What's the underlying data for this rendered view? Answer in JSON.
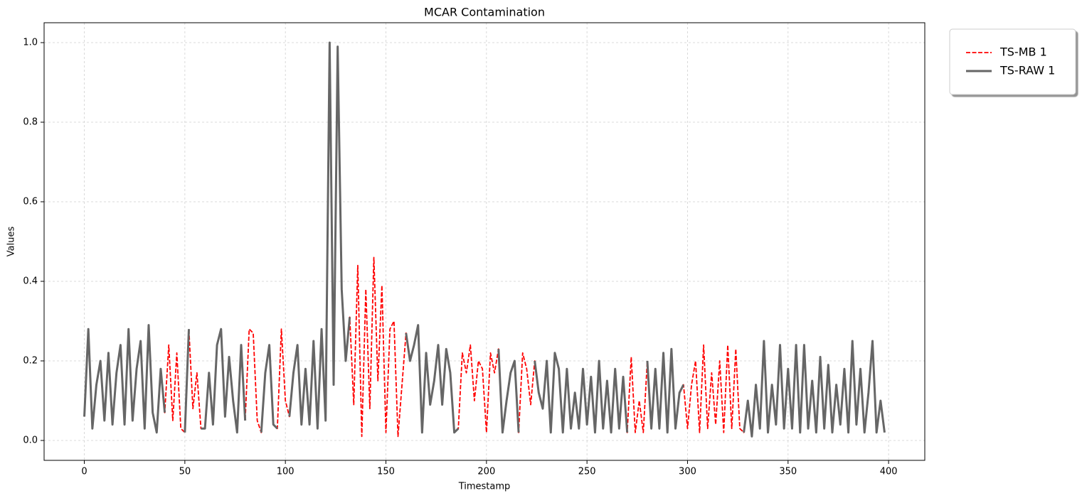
{
  "chart_data": {
    "type": "line",
    "title": "MCAR Contamination",
    "x_label": "Timestamp",
    "y_label": "Values",
    "x": [
      0,
      2,
      4,
      6,
      8,
      10,
      12,
      14,
      16,
      18,
      20,
      22,
      24,
      26,
      28,
      30,
      32,
      34,
      36,
      38,
      40,
      42,
      44,
      46,
      48,
      50,
      52,
      54,
      56,
      58,
      60,
      62,
      64,
      66,
      68,
      70,
      72,
      74,
      76,
      78,
      80,
      82,
      84,
      86,
      88,
      90,
      92,
      94,
      96,
      98,
      100,
      102,
      104,
      106,
      108,
      110,
      112,
      114,
      116,
      118,
      120,
      122,
      124,
      126,
      128,
      130,
      132,
      134,
      136,
      138,
      140,
      142,
      144,
      146,
      148,
      150,
      152,
      154,
      156,
      158,
      160,
      162,
      164,
      166,
      168,
      170,
      172,
      174,
      176,
      178,
      180,
      182,
      184,
      186,
      188,
      190,
      192,
      194,
      196,
      198,
      200,
      202,
      204,
      206,
      208,
      210,
      212,
      214,
      216,
      218,
      220,
      222,
      224,
      226,
      228,
      230,
      232,
      234,
      236,
      238,
      240,
      242,
      244,
      246,
      248,
      250,
      252,
      254,
      256,
      258,
      260,
      262,
      264,
      266,
      268,
      270,
      272,
      274,
      276,
      278,
      280,
      282,
      284,
      286,
      288,
      290,
      292,
      294,
      296,
      298,
      300,
      302,
      304,
      306,
      308,
      310,
      312,
      314,
      316,
      318,
      320,
      322,
      324,
      326,
      328,
      330,
      332,
      334,
      336,
      338,
      340,
      342,
      344,
      346,
      348,
      350,
      352,
      354,
      356,
      358,
      360,
      362,
      364,
      366,
      368,
      370,
      372,
      374,
      376,
      378,
      380,
      382,
      384,
      386,
      388,
      390,
      392,
      394,
      396,
      398
    ],
    "series": [
      {
        "name": "TS-MB 1",
        "color": "#ff0000",
        "dashed": true,
        "width": 1.8,
        "values": [
          0.06,
          0.28,
          0.03,
          0.14,
          0.2,
          0.05,
          0.22,
          0.04,
          0.17,
          0.24,
          0.04,
          0.28,
          0.05,
          0.18,
          0.25,
          0.03,
          0.29,
          0.07,
          0.02,
          0.18,
          0.07,
          0.24,
          0.05,
          0.22,
          0.03,
          0.02,
          0.28,
          0.08,
          0.17,
          0.03,
          0.03,
          0.17,
          0.04,
          0.24,
          0.28,
          0.06,
          0.21,
          0.1,
          0.02,
          0.24,
          0.05,
          0.28,
          0.27,
          0.05,
          0.02,
          0.17,
          0.24,
          0.04,
          0.03,
          0.28,
          0.1,
          0.06,
          0.17,
          0.24,
          0.04,
          0.18,
          0.04,
          0.25,
          0.03,
          0.28,
          0.05,
          1.0,
          0.14,
          0.99,
          0.38,
          0.2,
          0.31,
          0.09,
          0.44,
          0.01,
          0.38,
          0.08,
          0.46,
          0.15,
          0.39,
          0.02,
          0.28,
          0.3,
          0.01,
          0.14,
          0.27,
          0.2,
          0.24,
          0.29,
          0.02,
          0.22,
          0.09,
          0.15,
          0.24,
          0.09,
          0.23,
          0.17,
          0.02,
          0.03,
          0.22,
          0.17,
          0.24,
          0.1,
          0.2,
          0.18,
          0.02,
          0.22,
          0.17,
          0.23,
          0.02,
          0.1,
          0.17,
          0.2,
          0.02,
          0.22,
          0.18,
          0.09,
          0.2,
          0.12,
          0.08,
          0.2,
          0.02,
          0.22,
          0.18,
          0.02,
          0.18,
          0.03,
          0.12,
          0.03,
          0.18,
          0.04,
          0.16,
          0.02,
          0.2,
          0.03,
          0.15,
          0.02,
          0.18,
          0.03,
          0.16,
          0.02,
          0.21,
          0.02,
          0.1,
          0.02,
          0.2,
          0.03,
          0.18,
          0.03,
          0.22,
          0.02,
          0.23,
          0.03,
          0.12,
          0.14,
          0.03,
          0.14,
          0.2,
          0.02,
          0.24,
          0.03,
          0.17,
          0.04,
          0.2,
          0.02,
          0.24,
          0.03,
          0.23,
          0.03,
          0.02,
          0.1,
          0.01,
          0.14,
          0.03,
          0.25,
          0.02,
          0.14,
          0.04,
          0.24,
          0.03,
          0.18,
          0.03,
          0.24,
          0.02,
          0.24,
          0.03,
          0.15,
          0.02,
          0.21,
          0.03,
          0.19,
          0.02,
          0.14,
          0.04,
          0.18,
          0.02,
          0.25,
          0.04,
          0.18,
          0.02,
          0.12,
          0.25,
          0.02,
          0.1,
          0.02
        ]
      },
      {
        "name": "TS-RAW 1",
        "color": "#666666",
        "dashed": false,
        "width": 3,
        "values": [
          0.06,
          0.28,
          0.03,
          0.14,
          0.2,
          0.05,
          0.22,
          0.04,
          0.17,
          0.24,
          0.04,
          0.28,
          0.05,
          0.18,
          0.25,
          0.03,
          0.29,
          0.07,
          0.02,
          0.18,
          0.07,
          null,
          null,
          null,
          null,
          0.02,
          0.28,
          null,
          null,
          0.03,
          0.03,
          0.17,
          0.04,
          0.24,
          0.28,
          0.06,
          0.21,
          0.1,
          0.02,
          0.24,
          0.05,
          null,
          null,
          null,
          0.02,
          0.17,
          0.24,
          0.04,
          0.03,
          null,
          null,
          0.06,
          0.17,
          0.24,
          0.04,
          0.18,
          0.04,
          0.25,
          0.03,
          0.28,
          0.05,
          1.0,
          0.14,
          0.99,
          0.38,
          0.2,
          0.31,
          null,
          null,
          null,
          null,
          null,
          null,
          null,
          null,
          null,
          null,
          null,
          null,
          null,
          0.27,
          0.2,
          0.24,
          0.29,
          0.02,
          0.22,
          0.09,
          0.15,
          0.24,
          0.09,
          0.23,
          0.17,
          0.02,
          0.03,
          null,
          null,
          null,
          null,
          null,
          null,
          null,
          null,
          null,
          0.23,
          0.02,
          0.1,
          0.17,
          0.2,
          0.02,
          null,
          null,
          null,
          0.2,
          0.12,
          0.08,
          0.2,
          0.02,
          0.22,
          0.18,
          0.02,
          0.18,
          0.03,
          0.12,
          0.03,
          0.18,
          0.04,
          0.16,
          0.02,
          0.2,
          0.03,
          0.15,
          0.02,
          0.18,
          0.03,
          0.16,
          0.02,
          null,
          null,
          null,
          null,
          0.2,
          0.03,
          0.18,
          0.03,
          0.22,
          0.02,
          0.23,
          0.03,
          0.12,
          0.14,
          null,
          null,
          null,
          null,
          null,
          null,
          null,
          null,
          null,
          null,
          null,
          null,
          null,
          null,
          0.02,
          0.1,
          0.01,
          0.14,
          0.03,
          0.25,
          0.02,
          0.14,
          0.04,
          0.24,
          0.03,
          0.18,
          0.03,
          0.24,
          0.02,
          0.24,
          0.03,
          0.15,
          0.02,
          0.21,
          0.03,
          0.19,
          0.02,
          0.14,
          0.04,
          0.18,
          0.02,
          0.25,
          0.04,
          0.18,
          0.02,
          0.12,
          0.25,
          0.02,
          0.1,
          0.02
        ]
      }
    ],
    "xlim": [
      -20,
      418
    ],
    "ylim": [
      -0.05,
      1.05
    ],
    "xticks": [
      0,
      50,
      100,
      150,
      200,
      250,
      300,
      350,
      400
    ],
    "yticks": [
      {
        "value": 0,
        "label": "0.0"
      },
      0.2,
      0.4,
      0.6,
      0.8,
      {
        "value": 1,
        "label": "1.0"
      }
    ],
    "grid": true,
    "legend": "outside-upper-right"
  }
}
